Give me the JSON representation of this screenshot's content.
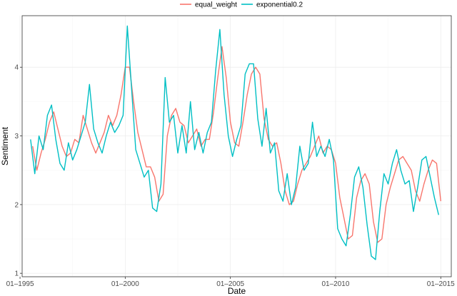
{
  "chart_data": {
    "type": "line",
    "title": "",
    "xlabel": "Date",
    "ylabel": "Sentiment",
    "xlim": [
      1995.1,
      2015.5
    ],
    "ylim": [
      0.95,
      4.75
    ],
    "x_ticks": [
      {
        "value": 1995.0,
        "label": "01–1995"
      },
      {
        "value": 2000.0,
        "label": "01–2000"
      },
      {
        "value": 2005.0,
        "label": "01–2005"
      },
      {
        "value": 2010.0,
        "label": "01–2010"
      },
      {
        "value": 2015.0,
        "label": "01–2015"
      }
    ],
    "y_ticks": [
      1,
      2,
      3,
      4
    ],
    "grid": true,
    "legend_position": "top",
    "series": [
      {
        "name": "equal_weight",
        "color": "#F8766D",
        "x": [
          1995.6,
          1995.8,
          1996.0,
          1996.2,
          1996.4,
          1996.6,
          1996.8,
          1997.0,
          1997.2,
          1997.4,
          1997.6,
          1997.8,
          1998.0,
          1998.2,
          1998.4,
          1998.6,
          1998.8,
          1999.0,
          1999.2,
          1999.4,
          1999.6,
          1999.8,
          2000.0,
          2000.2,
          2000.4,
          2000.6,
          2000.8,
          2001.0,
          2001.2,
          2001.4,
          2001.6,
          2001.8,
          2002.0,
          2002.2,
          2002.4,
          2002.6,
          2002.8,
          2003.0,
          2003.2,
          2003.4,
          2003.6,
          2003.8,
          2004.0,
          2004.2,
          2004.4,
          2004.6,
          2004.8,
          2005.0,
          2005.2,
          2005.4,
          2005.6,
          2005.8,
          2006.0,
          2006.2,
          2006.4,
          2006.6,
          2006.8,
          2007.0,
          2007.2,
          2007.4,
          2007.6,
          2007.8,
          2008.0,
          2008.2,
          2008.4,
          2008.6,
          2008.8,
          2009.0,
          2009.2,
          2009.4,
          2009.6,
          2009.8,
          2010.0,
          2010.2,
          2010.4,
          2010.6,
          2010.8,
          2011.0,
          2011.2,
          2011.4,
          2011.6,
          2011.8,
          2012.0,
          2012.2,
          2012.4,
          2012.6,
          2012.8,
          2013.0,
          2013.2,
          2013.4,
          2013.6,
          2013.8,
          2014.0,
          2014.2,
          2014.4,
          2014.6,
          2014.8,
          2015.0
        ],
        "values": [
          2.85,
          2.5,
          2.75,
          2.95,
          3.2,
          3.35,
          3.1,
          2.85,
          2.7,
          2.75,
          2.95,
          2.9,
          3.3,
          3.1,
          2.9,
          2.75,
          2.9,
          3.05,
          3.3,
          3.15,
          3.3,
          3.6,
          4.0,
          4.0,
          3.5,
          3.05,
          2.8,
          2.55,
          2.55,
          2.4,
          2.05,
          2.15,
          3.0,
          3.3,
          3.4,
          3.2,
          3.15,
          2.9,
          3.0,
          3.1,
          2.85,
          2.95,
          2.95,
          3.35,
          3.85,
          4.3,
          3.85,
          3.2,
          2.9,
          2.85,
          3.2,
          3.6,
          3.9,
          4.0,
          3.9,
          3.25,
          2.95,
          2.85,
          2.9,
          2.6,
          2.2,
          2.0,
          2.05,
          2.3,
          2.5,
          2.6,
          2.7,
          2.85,
          3.0,
          2.75,
          2.85,
          2.8,
          2.6,
          2.1,
          1.8,
          1.5,
          1.55,
          2.1,
          2.35,
          2.45,
          2.3,
          1.75,
          1.45,
          1.5,
          2.0,
          2.25,
          2.45,
          2.65,
          2.7,
          2.6,
          2.5,
          2.2,
          2.05,
          2.3,
          2.5,
          2.65,
          2.6,
          2.05
        ]
      },
      {
        "name": "exponential0.2",
        "color": "#00BFC4",
        "x": [
          1995.5,
          1995.7,
          1995.9,
          1996.1,
          1996.3,
          1996.5,
          1996.7,
          1996.9,
          1997.1,
          1997.3,
          1997.5,
          1997.7,
          1997.9,
          1998.1,
          1998.3,
          1998.5,
          1998.7,
          1998.9,
          1999.1,
          1999.3,
          1999.5,
          1999.7,
          1999.9,
          2000.1,
          2000.3,
          2000.5,
          2000.7,
          2000.9,
          2001.1,
          2001.3,
          2001.5,
          2001.7,
          2001.9,
          2002.1,
          2002.3,
          2002.5,
          2002.7,
          2002.9,
          2003.1,
          2003.3,
          2003.5,
          2003.7,
          2003.9,
          2004.1,
          2004.3,
          2004.5,
          2004.7,
          2004.9,
          2005.1,
          2005.3,
          2005.5,
          2005.7,
          2005.9,
          2006.1,
          2006.3,
          2006.5,
          2006.7,
          2006.9,
          2007.1,
          2007.3,
          2007.5,
          2007.7,
          2007.9,
          2008.1,
          2008.3,
          2008.5,
          2008.7,
          2008.9,
          2009.1,
          2009.3,
          2009.5,
          2009.7,
          2009.9,
          2010.1,
          2010.3,
          2010.5,
          2010.7,
          2010.9,
          2011.1,
          2011.3,
          2011.5,
          2011.7,
          2011.9,
          2012.1,
          2012.3,
          2012.5,
          2012.7,
          2012.9,
          2013.1,
          2013.3,
          2013.5,
          2013.7,
          2013.9,
          2014.1,
          2014.3,
          2014.5,
          2014.7,
          2014.9
        ],
        "values": [
          2.95,
          2.45,
          3.0,
          2.8,
          3.3,
          3.45,
          2.95,
          2.6,
          2.5,
          2.9,
          2.65,
          2.8,
          3.0,
          3.2,
          3.75,
          3.1,
          2.9,
          2.75,
          3.0,
          3.2,
          3.05,
          3.15,
          3.3,
          4.6,
          3.7,
          2.8,
          2.6,
          2.4,
          2.5,
          1.95,
          1.9,
          2.3,
          3.85,
          3.2,
          3.3,
          2.75,
          3.15,
          2.75,
          3.5,
          2.8,
          3.05,
          2.75,
          3.05,
          3.2,
          3.95,
          4.55,
          3.6,
          3.0,
          2.7,
          2.95,
          3.15,
          3.9,
          4.05,
          4.05,
          3.25,
          2.85,
          3.4,
          2.75,
          2.9,
          2.2,
          2.05,
          2.45,
          2.0,
          2.25,
          2.85,
          2.5,
          2.6,
          3.2,
          2.7,
          2.85,
          2.7,
          2.95,
          2.65,
          1.65,
          1.5,
          1.4,
          1.85,
          2.4,
          2.55,
          2.25,
          1.7,
          1.25,
          1.2,
          1.9,
          2.45,
          2.3,
          2.6,
          2.8,
          2.5,
          2.3,
          2.35,
          1.9,
          2.25,
          2.65,
          2.7,
          2.4,
          2.1,
          1.85
        ]
      }
    ]
  }
}
